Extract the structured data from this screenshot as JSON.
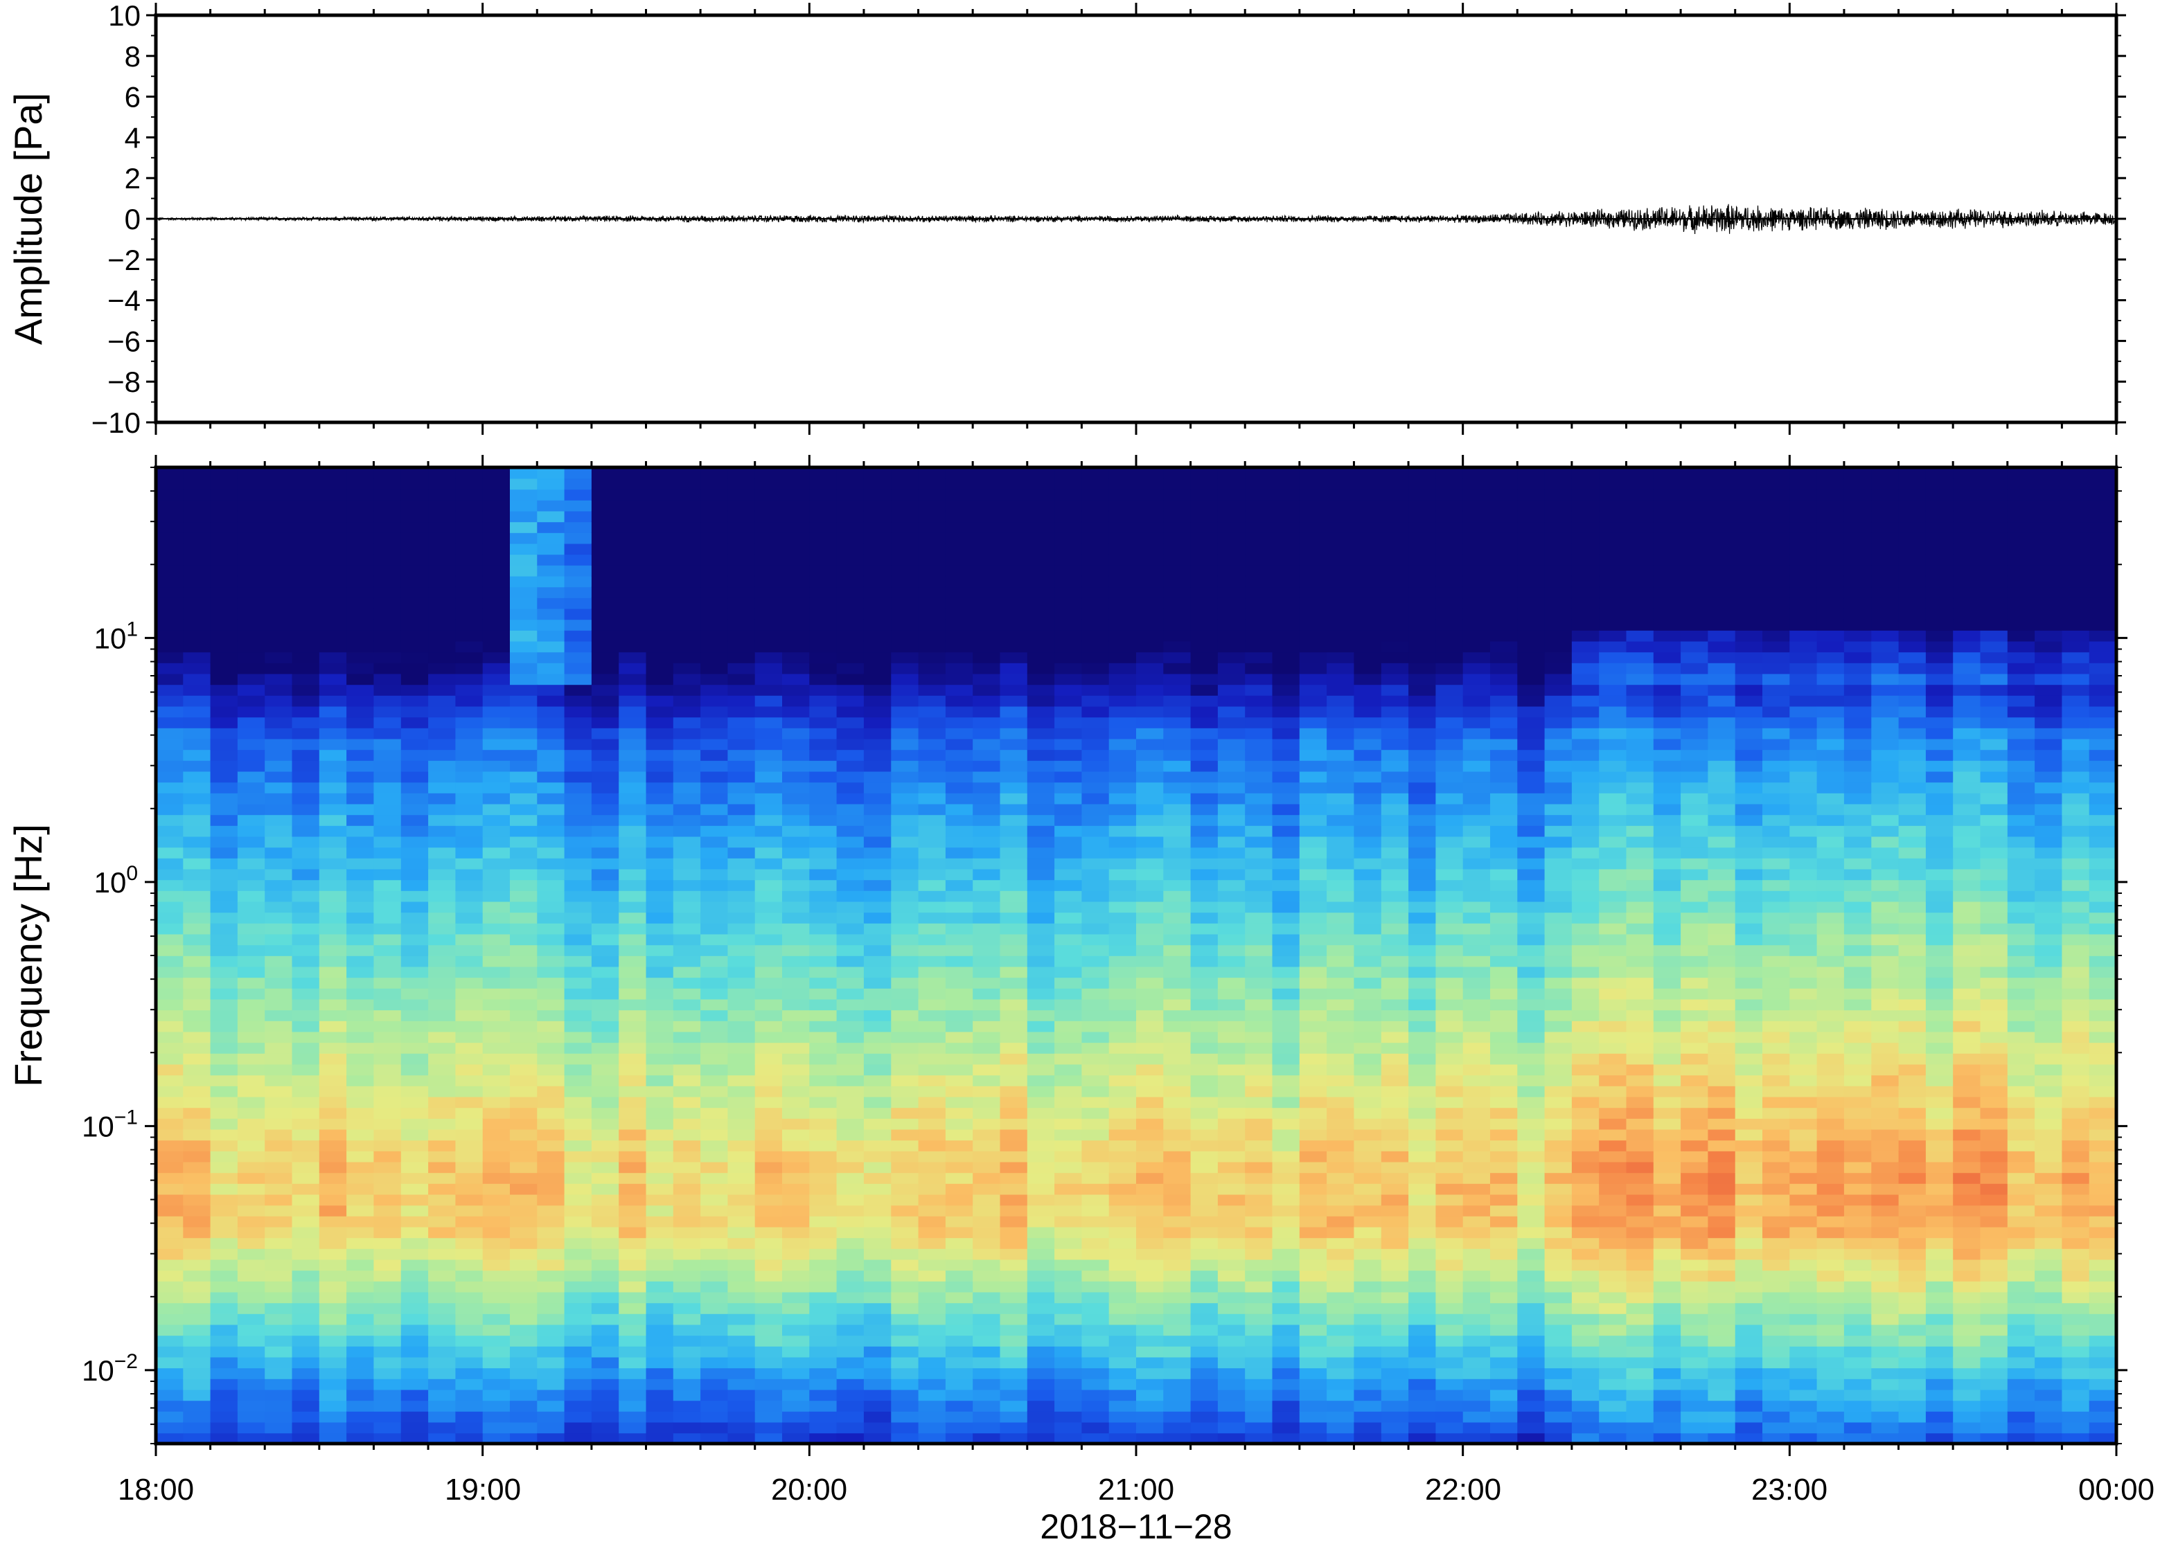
{
  "chart_data": [
    {
      "type": "line",
      "ylabel": "Amplitude [Pa]",
      "ylim": [
        -10,
        10
      ],
      "yticks": [
        10,
        8,
        6,
        4,
        2,
        0,
        -2,
        -4,
        -6,
        -8,
        -10
      ],
      "ytick_labels": [
        "10",
        "8",
        "6",
        "4",
        "2",
        "0",
        "−2",
        "−4",
        "−6",
        "−8",
        "−10"
      ],
      "x_range_hours": [
        18,
        24
      ],
      "grid": false,
      "envelope": {
        "time_hours": [
          18.0,
          19.0,
          20.0,
          21.0,
          22.0,
          22.4,
          22.8,
          23.0,
          23.5,
          24.0
        ],
        "amplitude_pa": [
          0.05,
          0.1,
          0.15,
          0.12,
          0.15,
          0.35,
          0.6,
          0.45,
          0.4,
          0.25
        ]
      }
    },
    {
      "type": "heatmap",
      "ylabel": "Frequency [Hz]",
      "yscale": "log",
      "ylim": [
        0.005,
        50
      ],
      "yticks": [
        0.01,
        0.1,
        1,
        10
      ],
      "ytick_labels": [
        {
          "base": "10",
          "exp": "−2"
        },
        {
          "base": "10",
          "exp": "−1"
        },
        {
          "base": "10",
          "exp": "0"
        },
        {
          "base": "10",
          "exp": "1"
        }
      ],
      "colormap": "jet",
      "grid": false
    }
  ],
  "x_axis": {
    "tick_labels": [
      "18:00",
      "19:00",
      "20:00",
      "21:00",
      "22:00",
      "23:00",
      "00:00"
    ],
    "label": "2018−11−28"
  },
  "colors": {
    "frame": "#000000",
    "trace": "#000000",
    "background": "#ffffff"
  }
}
